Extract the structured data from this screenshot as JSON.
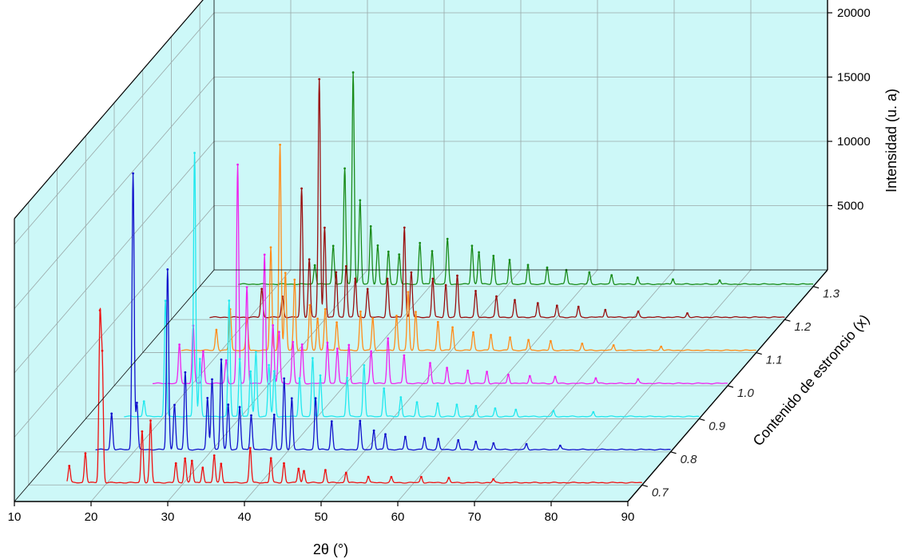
{
  "chart_data": {
    "type": "line",
    "title": "",
    "xlabel": "2θ (°)",
    "ylabel": "Intensidad (u. a)",
    "zlabel": "Contenido de estroncio (x)",
    "xlim": [
      10,
      90
    ],
    "ylim": [
      0,
      22000
    ],
    "x_ticks": [
      "10",
      "20",
      "30",
      "40",
      "50",
      "60",
      "70",
      "80",
      "90"
    ],
    "y_ticks": [
      "5000",
      "10000",
      "15000",
      "20000"
    ],
    "z_ticks": [
      "0.7",
      "0.8",
      "0.9",
      "1.0",
      "1.1",
      "1.2",
      "1.3"
    ],
    "background_color": "#cdf8f8",
    "grid": true,
    "series": [
      {
        "z": 0.7,
        "color": "#ee1111",
        "peaks": [
          [
            15.3,
            1300
          ],
          [
            17.4,
            2300
          ],
          [
            19.3,
            12500
          ],
          [
            19.6,
            9000
          ],
          [
            24.8,
            4000
          ],
          [
            25.9,
            4800
          ],
          [
            29.2,
            1500
          ],
          [
            30.4,
            1900
          ],
          [
            31.3,
            1700
          ],
          [
            32.7,
            1200
          ],
          [
            34.2,
            2100
          ],
          [
            35.1,
            1500
          ],
          [
            38.9,
            2700
          ],
          [
            41.6,
            1900
          ],
          [
            43.3,
            1500
          ],
          [
            45.2,
            1100
          ],
          [
            45.9,
            900
          ],
          [
            48.7,
            1000
          ],
          [
            51.4,
            800
          ],
          [
            54.3,
            450
          ],
          [
            57.3,
            400
          ],
          [
            61.2,
            450
          ],
          [
            64.8,
            350
          ],
          [
            70.6,
            250
          ]
        ]
      },
      {
        "z": 0.8,
        "color": "#1111cc",
        "peaks": [
          [
            17.1,
            2800
          ],
          [
            19.9,
            21500
          ],
          [
            20.4,
            3600
          ],
          [
            24.4,
            14000
          ],
          [
            25.3,
            3500
          ],
          [
            26.7,
            6000
          ],
          [
            29.6,
            4000
          ],
          [
            30.2,
            5500
          ],
          [
            31.4,
            7000
          ],
          [
            32.3,
            3500
          ],
          [
            33.8,
            3300
          ],
          [
            35.3,
            2700
          ],
          [
            38.3,
            2700
          ],
          [
            39.6,
            5500
          ],
          [
            40.6,
            4000
          ],
          [
            43.7,
            4000
          ],
          [
            45.8,
            2200
          ],
          [
            49.5,
            2200
          ],
          [
            51.3,
            1500
          ],
          [
            52.8,
            1200
          ],
          [
            55.4,
            1000
          ],
          [
            57.9,
            900
          ],
          [
            59.7,
            800
          ],
          [
            62.3,
            700
          ],
          [
            64.6,
            600
          ],
          [
            66.9,
            500
          ],
          [
            71.2,
            400
          ],
          [
            75.6,
            300
          ]
        ]
      },
      {
        "z": 0.9,
        "color": "#22e8ee",
        "peaks": [
          [
            17.6,
            1200
          ],
          [
            20.4,
            9000
          ],
          [
            24.2,
            20500
          ],
          [
            24.9,
            4500
          ],
          [
            28.7,
            9000
          ],
          [
            30.1,
            4500
          ],
          [
            31.5,
            3500
          ],
          [
            32.2,
            5000
          ],
          [
            33.9,
            4000
          ],
          [
            34.6,
            3500
          ],
          [
            37.9,
            3000
          ],
          [
            39.6,
            4500
          ],
          [
            40.6,
            3200
          ],
          [
            44.1,
            3000
          ],
          [
            46.3,
            4000
          ],
          [
            48.9,
            2200
          ],
          [
            51.1,
            1500
          ],
          [
            53.2,
            1100
          ],
          [
            55.9,
            1000
          ],
          [
            58.4,
            900
          ],
          [
            60.9,
            800
          ],
          [
            63.4,
            600
          ],
          [
            66.1,
            500
          ],
          [
            71.0,
            400
          ],
          [
            76.2,
            300
          ]
        ]
      },
      {
        "z": 1.0,
        "color": "#ee22ee",
        "peaks": [
          [
            18.5,
            3000
          ],
          [
            20.3,
            4500
          ],
          [
            21.6,
            2500
          ],
          [
            24.6,
            1800
          ],
          [
            26.1,
            17000
          ],
          [
            27.3,
            7500
          ],
          [
            29.6,
            10000
          ],
          [
            30.7,
            4500
          ],
          [
            31.5,
            4000
          ],
          [
            33.3,
            3200
          ],
          [
            34.5,
            3000
          ],
          [
            37.8,
            3200
          ],
          [
            39.1,
            2700
          ],
          [
            40.6,
            3000
          ],
          [
            43.5,
            2500
          ],
          [
            45.7,
            3500
          ],
          [
            47.8,
            2200
          ],
          [
            51.2,
            1600
          ],
          [
            53.4,
            1200
          ],
          [
            56.1,
            1000
          ],
          [
            58.6,
            900
          ],
          [
            61.4,
            700
          ],
          [
            64.2,
            600
          ],
          [
            67.5,
            500
          ],
          [
            72.8,
            400
          ],
          [
            78.3,
            300
          ]
        ]
      },
      {
        "z": 1.1,
        "color": "#ff8c1a",
        "peaks": [
          [
            19.6,
            1600
          ],
          [
            21.4,
            3200
          ],
          [
            23.6,
            2500
          ],
          [
            26.7,
            8000
          ],
          [
            27.9,
            16000
          ],
          [
            28.6,
            6000
          ],
          [
            29.8,
            5500
          ],
          [
            31.8,
            3500
          ],
          [
            32.8,
            2500
          ],
          [
            33.8,
            3200
          ],
          [
            35.3,
            2200
          ],
          [
            38.4,
            3000
          ],
          [
            40.0,
            2500
          ],
          [
            43.1,
            2700
          ],
          [
            44.6,
            4500
          ],
          [
            45.6,
            3000
          ],
          [
            48.5,
            2200
          ],
          [
            50.4,
            1800
          ],
          [
            53.1,
            1400
          ],
          [
            55.4,
            1200
          ],
          [
            57.9,
            1000
          ],
          [
            60.3,
            800
          ],
          [
            63.2,
            700
          ],
          [
            67.3,
            500
          ],
          [
            71.4,
            400
          ],
          [
            77.6,
            300
          ]
        ]
      },
      {
        "z": 1.2,
        "color": "#990f0f",
        "peaks": [
          [
            21.8,
            2200
          ],
          [
            24.5,
            1600
          ],
          [
            27.0,
            10000
          ],
          [
            28.0,
            4500
          ],
          [
            29.3,
            18500
          ],
          [
            30.0,
            7000
          ],
          [
            31.5,
            3500
          ],
          [
            32.8,
            4000
          ],
          [
            34.0,
            3000
          ],
          [
            35.6,
            2200
          ],
          [
            38.2,
            3000
          ],
          [
            40.4,
            7000
          ],
          [
            41.3,
            3500
          ],
          [
            44.1,
            3000
          ],
          [
            45.8,
            2500
          ],
          [
            47.3,
            3200
          ],
          [
            49.7,
            2000
          ],
          [
            52.4,
            1600
          ],
          [
            54.8,
            1300
          ],
          [
            57.8,
            1100
          ],
          [
            60.3,
            900
          ],
          [
            63.1,
            800
          ],
          [
            66.6,
            600
          ],
          [
            70.9,
            400
          ],
          [
            77.3,
            300
          ]
        ]
      },
      {
        "z": 1.3,
        "color": "#1a8c1a",
        "peaks": [
          [
            25.0,
            1500
          ],
          [
            27.4,
            3000
          ],
          [
            28.9,
            9000
          ],
          [
            30.0,
            16500
          ],
          [
            30.9,
            6500
          ],
          [
            32.3,
            4500
          ],
          [
            33.2,
            3000
          ],
          [
            34.6,
            2500
          ],
          [
            36.0,
            2300
          ],
          [
            38.7,
            3200
          ],
          [
            40.3,
            2600
          ],
          [
            42.3,
            3500
          ],
          [
            45.5,
            3000
          ],
          [
            46.4,
            2500
          ],
          [
            48.3,
            2200
          ],
          [
            50.4,
            1900
          ],
          [
            52.8,
            1500
          ],
          [
            55.3,
            1300
          ],
          [
            57.8,
            1100
          ],
          [
            60.8,
            900
          ],
          [
            63.7,
            700
          ],
          [
            67.1,
            500
          ],
          [
            71.7,
            400
          ],
          [
            77.8,
            300
          ]
        ]
      }
    ]
  }
}
